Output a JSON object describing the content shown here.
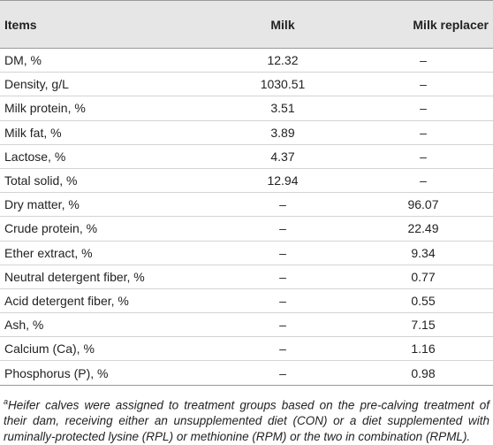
{
  "table": {
    "header": [
      "Items",
      "Milk",
      "Milk replacer"
    ],
    "rows": [
      [
        "DM, %",
        "12.32",
        "–"
      ],
      [
        "Density, g/L",
        "1030.51",
        "–"
      ],
      [
        "Milk protein, %",
        "3.51",
        "–"
      ],
      [
        "Milk fat, %",
        "3.89",
        "–"
      ],
      [
        "Lactose, %",
        "4.37",
        "–"
      ],
      [
        "Total solid, %",
        "12.94",
        "–"
      ],
      [
        "Dry matter, %",
        "–",
        "96.07"
      ],
      [
        "Crude protein, %",
        "–",
        "22.49"
      ],
      [
        "Ether extract, %",
        "–",
        "9.34"
      ],
      [
        "Neutral detergent fiber, %",
        "–",
        "0.77"
      ],
      [
        "Acid detergent fiber, %",
        "–",
        "0.55"
      ],
      [
        "Ash, %",
        "–",
        "7.15"
      ],
      [
        "Calcium (Ca), %",
        "–",
        "1.16"
      ],
      [
        "Phosphorus (P), %",
        "–",
        "0.98"
      ]
    ]
  },
  "footnote": {
    "marker": "a",
    "text": "Heifer calves were assigned to treatment groups based on the pre-calving treatment of their dam, receiving either an unsupplemented diet (CON) or a diet supplemented with ruminally-protected lysine (RPL) or methionine (RPM) or the two in combination (RPML)."
  }
}
